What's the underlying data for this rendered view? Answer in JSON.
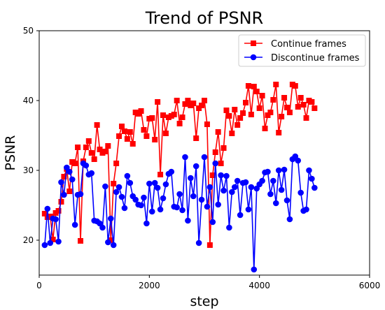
{
  "chart_data": {
    "type": "line",
    "title": "Trend of PSNR",
    "xlabel": "step",
    "ylabel": "PSNR",
    "xlim": [
      0,
      6000
    ],
    "ylim": [
      15,
      50
    ],
    "xticks": [
      "0",
      "2000",
      "4000",
      "6000"
    ],
    "yticks": [
      "20",
      "30",
      "40",
      "50"
    ],
    "legend_position": "top-right",
    "grid": false,
    "series": [
      {
        "name": "Continue frames",
        "color": "#ff0000",
        "marker": "square",
        "x": [
          100,
          150,
          200,
          250,
          300,
          350,
          400,
          450,
          500,
          550,
          600,
          650,
          700,
          750,
          800,
          850,
          900,
          950,
          1000,
          1050,
          1100,
          1150,
          1200,
          1250,
          1300,
          1350,
          1400,
          1450,
          1500,
          1550,
          1600,
          1650,
          1700,
          1750,
          1800,
          1850,
          1900,
          1950,
          2000,
          2050,
          2100,
          2150,
          2200,
          2250,
          2300,
          2350,
          2400,
          2450,
          2500,
          2550,
          2600,
          2650,
          2700,
          2750,
          2800,
          2850,
          2900,
          2950,
          3000,
          3050,
          3100,
          3150,
          3200,
          3250,
          3300,
          3350,
          3400,
          3450,
          3500,
          3550,
          3600,
          3650,
          3700,
          3750,
          3800,
          3850,
          3900,
          3950,
          4000,
          4050,
          4100,
          4150,
          4200,
          4250,
          4300,
          4350,
          4400,
          4450,
          4500,
          4550,
          4600,
          4650,
          4700,
          4750,
          4800,
          4850,
          4900,
          4950,
          5000
        ],
        "y": [
          23.8,
          23.3,
          23.4,
          20.1,
          23.9,
          24.2,
          25.5,
          29.1,
          30.2,
          27.0,
          31.2,
          31.0,
          33.3,
          19.9,
          31.3,
          33.3,
          34.2,
          32.5,
          31.6,
          36.5,
          33.0,
          32.5,
          32.7,
          33.5,
          20.0,
          28.1,
          31.0,
          34.9,
          36.3,
          35.6,
          34.5,
          35.5,
          33.8,
          38.3,
          38.1,
          38.5,
          35.8,
          34.9,
          37.4,
          37.5,
          34.4,
          39.8,
          29.4,
          37.9,
          35.3,
          37.6,
          37.8,
          38.0,
          40.0,
          36.7,
          37.6,
          39.5,
          40.0,
          39.3,
          39.6,
          34.6,
          38.9,
          39.3,
          40.0,
          36.6,
          19.3,
          29.3,
          32.6,
          35.5,
          31.0,
          33.2,
          38.6,
          37.8,
          35.3,
          38.7,
          36.5,
          37.5,
          38.2,
          39.7,
          42.1,
          38.0,
          42.0,
          41.3,
          38.9,
          40.7,
          36.0,
          37.9,
          38.3,
          40.1,
          42.3,
          35.4,
          37.7,
          40.4,
          39.0,
          38.3,
          42.3,
          42.1,
          39.1,
          40.4,
          39.4,
          37.5,
          40.0,
          39.8,
          38.9
        ]
      },
      {
        "name": "Discontinue frames",
        "color": "#0000ff",
        "marker": "circle",
        "x": [
          100,
          150,
          200,
          250,
          300,
          350,
          400,
          450,
          500,
          550,
          600,
          650,
          700,
          750,
          800,
          850,
          900,
          950,
          1000,
          1050,
          1100,
          1150,
          1200,
          1250,
          1300,
          1350,
          1400,
          1450,
          1500,
          1550,
          1600,
          1650,
          1700,
          1750,
          1800,
          1850,
          1900,
          1950,
          2000,
          2050,
          2100,
          2150,
          2200,
          2250,
          2300,
          2350,
          2400,
          2450,
          2500,
          2550,
          2600,
          2650,
          2700,
          2750,
          2800,
          2850,
          2900,
          2950,
          3000,
          3050,
          3100,
          3150,
          3200,
          3250,
          3300,
          3350,
          3400,
          3450,
          3500,
          3550,
          3600,
          3650,
          3700,
          3750,
          3800,
          3850,
          3900,
          3950,
          4000,
          4050,
          4100,
          4150,
          4200,
          4250,
          4300,
          4350,
          4400,
          4450,
          4500,
          4550,
          4600,
          4650,
          4700,
          4750,
          4800,
          4850,
          4900,
          4950,
          5000
        ],
        "y": [
          19.3,
          24.5,
          19.6,
          23.1,
          23.0,
          19.8,
          28.3,
          26.5,
          30.4,
          29.8,
          28.7,
          22.2,
          26.5,
          26.6,
          31.0,
          30.7,
          29.4,
          29.6,
          22.8,
          22.7,
          22.4,
          21.8,
          27.7,
          19.7,
          23.1,
          19.3,
          26.9,
          27.6,
          26.2,
          24.6,
          29.2,
          28.2,
          26.3,
          25.8,
          25.1,
          25.0,
          26.1,
          22.4,
          28.1,
          24.1,
          28.2,
          27.5,
          24.4,
          26.0,
          28.0,
          29.5,
          29.8,
          24.8,
          24.7,
          26.6,
          24.3,
          31.9,
          22.8,
          28.9,
          26.3,
          30.6,
          19.6,
          25.8,
          31.9,
          24.8,
          27.6,
          22.6,
          31.0,
          25.1,
          29.3,
          27.1,
          29.2,
          21.8,
          26.9,
          27.6,
          28.5,
          23.6,
          28.2,
          28.3,
          24.4,
          27.6,
          15.8,
          27.4,
          28.0,
          28.5,
          29.7,
          29.8,
          26.6,
          28.5,
          25.3,
          30.0,
          27.2,
          30.1,
          25.7,
          23.0,
          31.6,
          32.0,
          31.4,
          26.8,
          24.2,
          24.4,
          30.0,
          28.8,
          27.5
        ]
      }
    ]
  }
}
